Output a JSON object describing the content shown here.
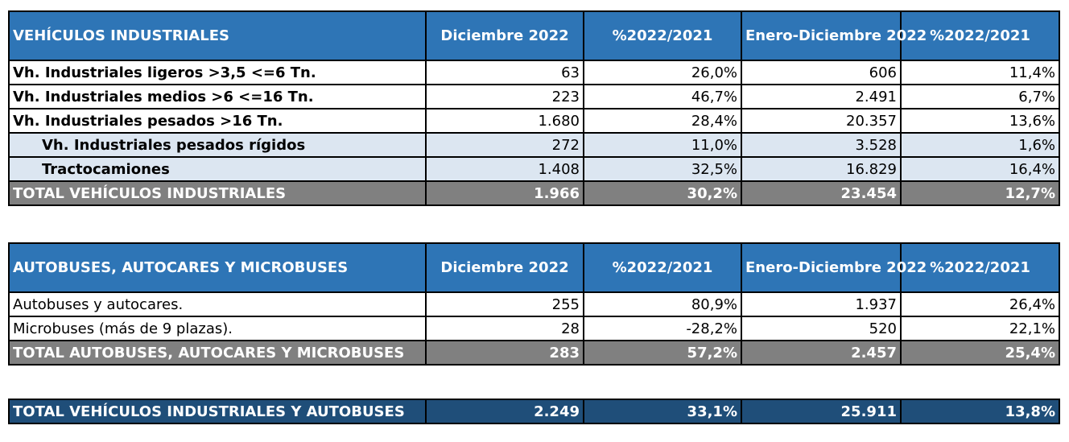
{
  "industriales": {
    "header": [
      "VEHÍCULOS INDUSTRIALES",
      "Diciembre 2022",
      "%2022/2021",
      "Enero-Diciembre 2022",
      "%2022/2021"
    ],
    "rows": [
      {
        "label": "Vh. Industriales ligeros >3,5 <=6 Tn.",
        "dic": "63",
        "pct_dic": "26,0%",
        "ene_dic": "606",
        "pct_ene": "11,4%"
      },
      {
        "label": "Vh. Industriales medios >6  <=16 Tn.",
        "dic": "223",
        "pct_dic": "46,7%",
        "ene_dic": "2.491",
        "pct_ene": "6,7%"
      },
      {
        "label": "Vh. Industriales  pesados >16 Tn.",
        "dic": "1.680",
        "pct_dic": "28,4%",
        "ene_dic": "20.357",
        "pct_ene": "13,6%"
      },
      {
        "label": "Vh. Industriales pesados rígidos",
        "dic": "272",
        "pct_dic": "11,0%",
        "ene_dic": "3.528",
        "pct_ene": "1,6%"
      },
      {
        "label": "Tractocamiones",
        "dic": "1.408",
        "pct_dic": "32,5%",
        "ene_dic": "16.829",
        "pct_ene": "16,4%"
      }
    ],
    "total": {
      "label": "TOTAL VEHÍCULOS INDUSTRIALES",
      "dic": "1.966",
      "pct_dic": "30,2%",
      "ene_dic": "23.454",
      "pct_ene": "12,7%"
    }
  },
  "autobuses": {
    "header": [
      "AUTOBUSES, AUTOCARES Y MICROBUSES",
      "Diciembre 2022",
      "%2022/2021",
      "Enero-Diciembre 2022",
      "%2022/2021"
    ],
    "rows": [
      {
        "label": "Autobuses y autocares.",
        "dic": "255",
        "pct_dic": "80,9%",
        "ene_dic": "1.937",
        "pct_ene": "26,4%"
      },
      {
        "label": "Microbuses (más de 9 plazas).",
        "dic": "28",
        "pct_dic": "-28,2%",
        "ene_dic": "520",
        "pct_ene": "22,1%"
      }
    ],
    "total": {
      "label": "TOTAL AUTOBUSES, AUTOCARES Y MICROBUSES",
      "dic": "283",
      "pct_dic": "57,2%",
      "ene_dic": "2.457",
      "pct_ene": "25,4%"
    }
  },
  "grand_total": {
    "label": "TOTAL VEHÍCULOS INDUSTRIALES Y AUTOBUSES",
    "dic": "2.249",
    "pct_dic": "33,1%",
    "ene_dic": "25.911",
    "pct_ene": "13,8%"
  },
  "colors": {
    "header_blue": "#2e75b6",
    "sub_row_blue": "#dce6f1",
    "total_gray": "#808080",
    "grand_navy": "#1f4e79"
  }
}
